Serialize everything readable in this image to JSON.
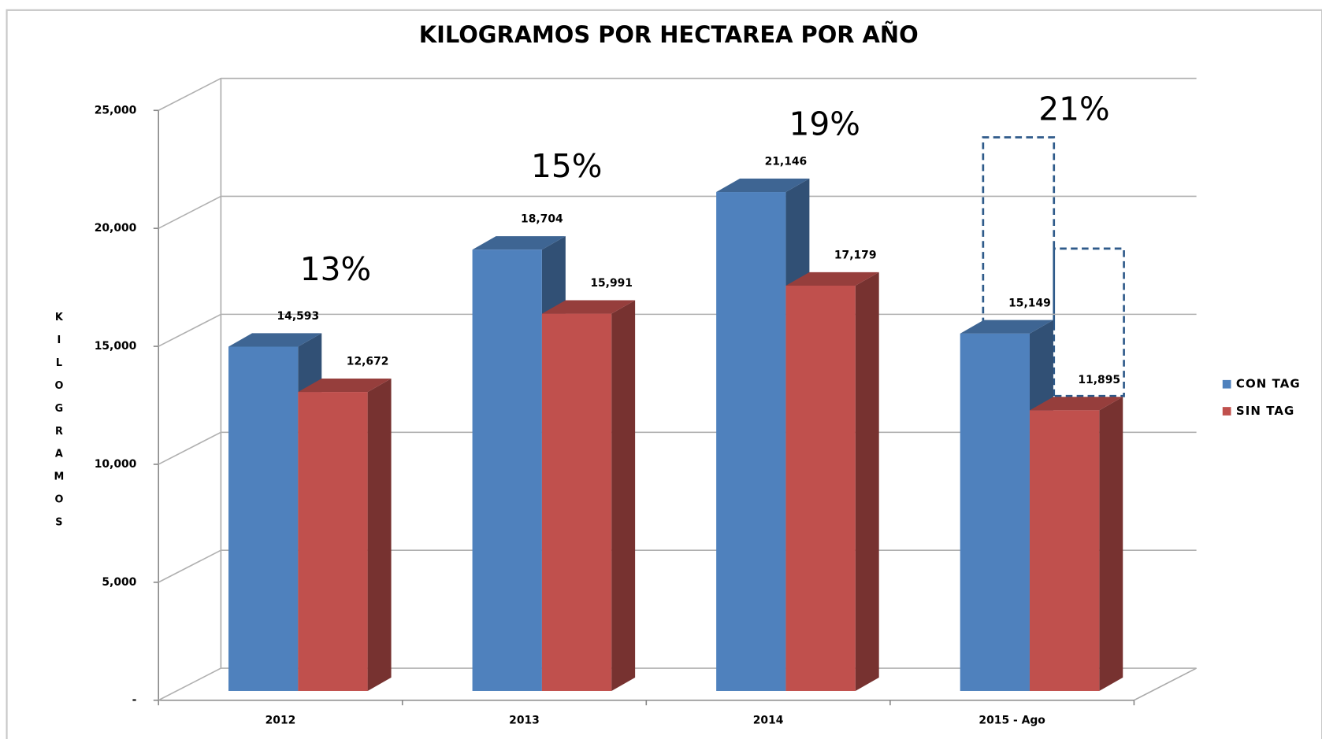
{
  "chart_data": {
    "type": "bar3d",
    "title": "KILOGRAMOS POR HECTAREA POR AÑO",
    "y_label": "KILOGRAMOS",
    "categories": [
      "2012",
      "2013",
      "2014",
      "2015 - Ago"
    ],
    "series": [
      {
        "name": "CON TAG",
        "color": "#4f81bd",
        "values": [
          14593,
          18704,
          21146,
          15149
        ],
        "value_labels": [
          "14,593",
          "18,704",
          "21,146",
          "15,149"
        ]
      },
      {
        "name": "SIN TAG",
        "color": "#c0504d",
        "values": [
          12672,
          15991,
          17179,
          11895
        ],
        "value_labels": [
          "12,672",
          "15,991",
          "17,179",
          "11,895"
        ]
      }
    ],
    "annotations": [
      "13%",
      "15%",
      "19%",
      "21%"
    ],
    "ylim": [
      0,
      25000
    ],
    "yticks": [
      {
        "value": 0,
        "label": "-"
      },
      {
        "value": 5000,
        "label": "5,000"
      },
      {
        "value": 10000,
        "label": "10,000"
      },
      {
        "value": 15000,
        "label": "15,000"
      },
      {
        "value": 20000,
        "label": "20,000"
      },
      {
        "value": 25000,
        "label": "25,000"
      }
    ],
    "grid": true,
    "legend": "right"
  }
}
